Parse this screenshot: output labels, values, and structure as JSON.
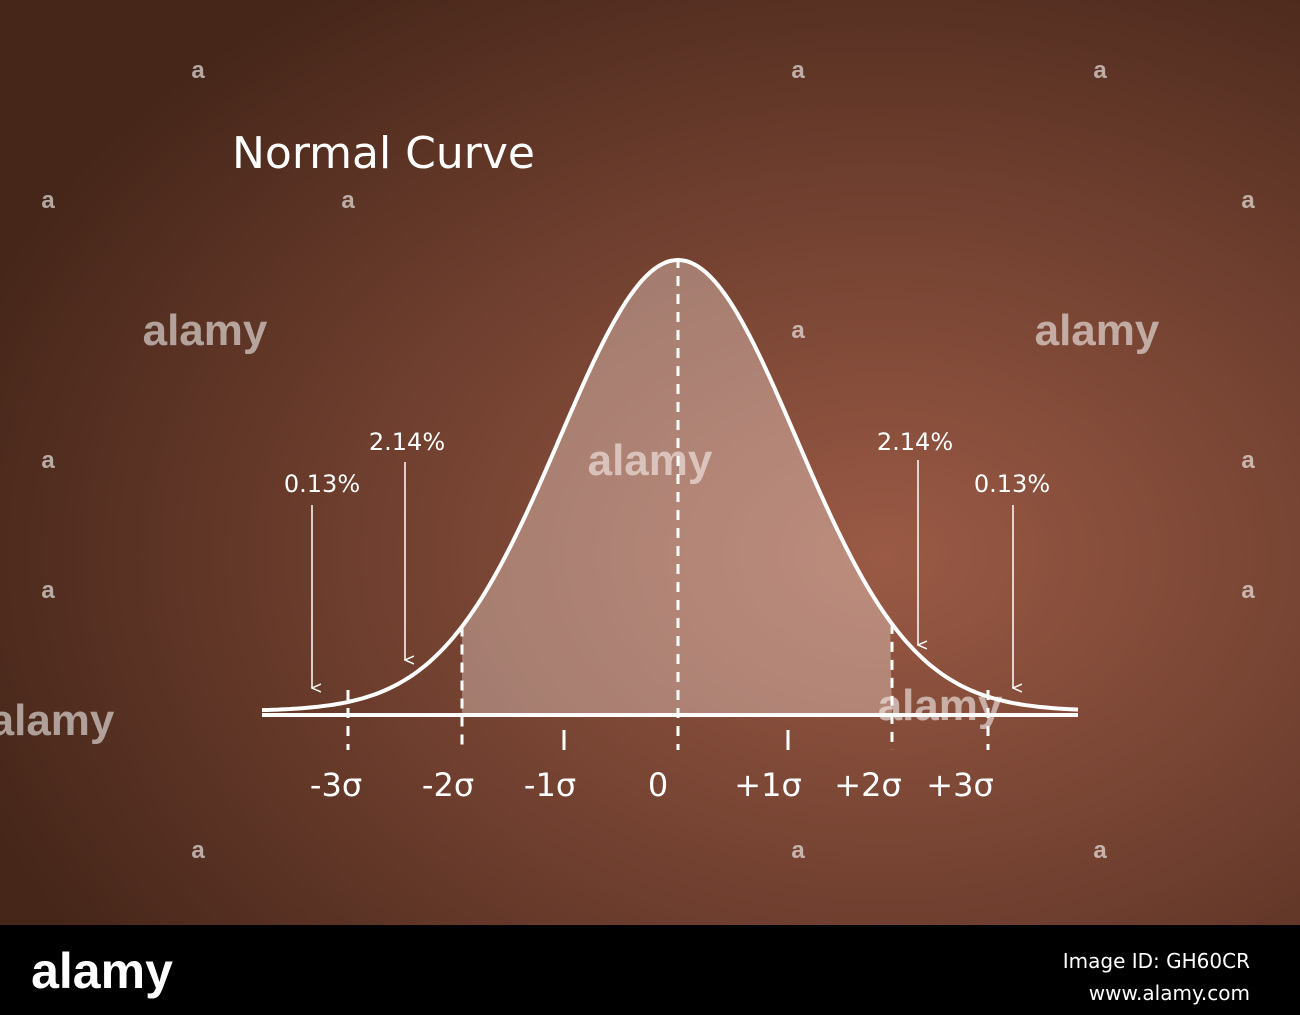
{
  "title": "Normal Curve",
  "axis_labels": [
    "-3σ",
    "-2σ",
    "-1σ",
    "0",
    "+1σ",
    "+2σ",
    "+3σ"
  ],
  "annotations": {
    "left_outer": "0.13%",
    "left_inner": "2.14%",
    "right_inner": "2.14%",
    "right_outer": "0.13%"
  },
  "watermark": "alamy",
  "watermark_small": "a",
  "footer": {
    "logo": "alamy",
    "image_id": "Image ID: GH60CR",
    "url": "www.alamy.com"
  }
}
